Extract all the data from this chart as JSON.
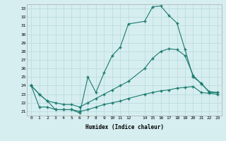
{
  "title": "",
  "xlabel": "Humidex (Indice chaleur)",
  "bg_color": "#d6eef0",
  "grid_color": "#b8d8dc",
  "line_color": "#1a7a6e",
  "xlim": [
    -0.5,
    23.5
  ],
  "ylim": [
    20.5,
    33.5
  ],
  "xticks": [
    0,
    1,
    2,
    3,
    4,
    5,
    6,
    7,
    8,
    9,
    10,
    11,
    12,
    14,
    15,
    16,
    17,
    18,
    19,
    20,
    21,
    22,
    23
  ],
  "yticks": [
    21,
    22,
    23,
    24,
    25,
    26,
    27,
    28,
    29,
    30,
    31,
    32,
    33
  ],
  "line1_x": [
    0,
    1,
    2,
    3,
    4,
    5,
    6,
    7,
    8,
    9,
    10,
    11,
    12,
    14,
    15,
    16,
    17,
    18,
    19,
    20,
    21,
    22,
    23
  ],
  "line1_y": [
    24.0,
    23.0,
    22.2,
    21.2,
    21.2,
    21.2,
    20.8,
    25.0,
    23.2,
    25.5,
    27.5,
    28.5,
    31.2,
    31.5,
    33.2,
    33.3,
    32.2,
    31.3,
    28.2,
    25.0,
    24.3,
    23.2,
    23.2
  ],
  "line2_x": [
    0,
    1,
    2,
    3,
    4,
    5,
    6,
    7,
    8,
    9,
    10,
    11,
    12,
    14,
    15,
    16,
    17,
    18,
    19,
    20,
    21,
    22,
    23
  ],
  "line2_y": [
    24.0,
    23.0,
    22.2,
    22.0,
    21.8,
    21.8,
    21.5,
    22.0,
    22.5,
    23.0,
    23.5,
    24.0,
    24.5,
    26.0,
    27.2,
    28.0,
    28.3,
    28.2,
    27.5,
    25.2,
    24.2,
    23.3,
    23.2
  ],
  "line3_x": [
    0,
    1,
    2,
    3,
    4,
    5,
    6,
    7,
    8,
    9,
    10,
    11,
    12,
    14,
    15,
    16,
    17,
    18,
    19,
    20,
    21,
    22,
    23
  ],
  "line3_y": [
    24.0,
    21.5,
    21.5,
    21.2,
    21.2,
    21.2,
    21.0,
    21.2,
    21.5,
    21.8,
    22.0,
    22.2,
    22.5,
    23.0,
    23.2,
    23.4,
    23.5,
    23.7,
    23.8,
    23.9,
    23.2,
    23.1,
    23.0
  ]
}
